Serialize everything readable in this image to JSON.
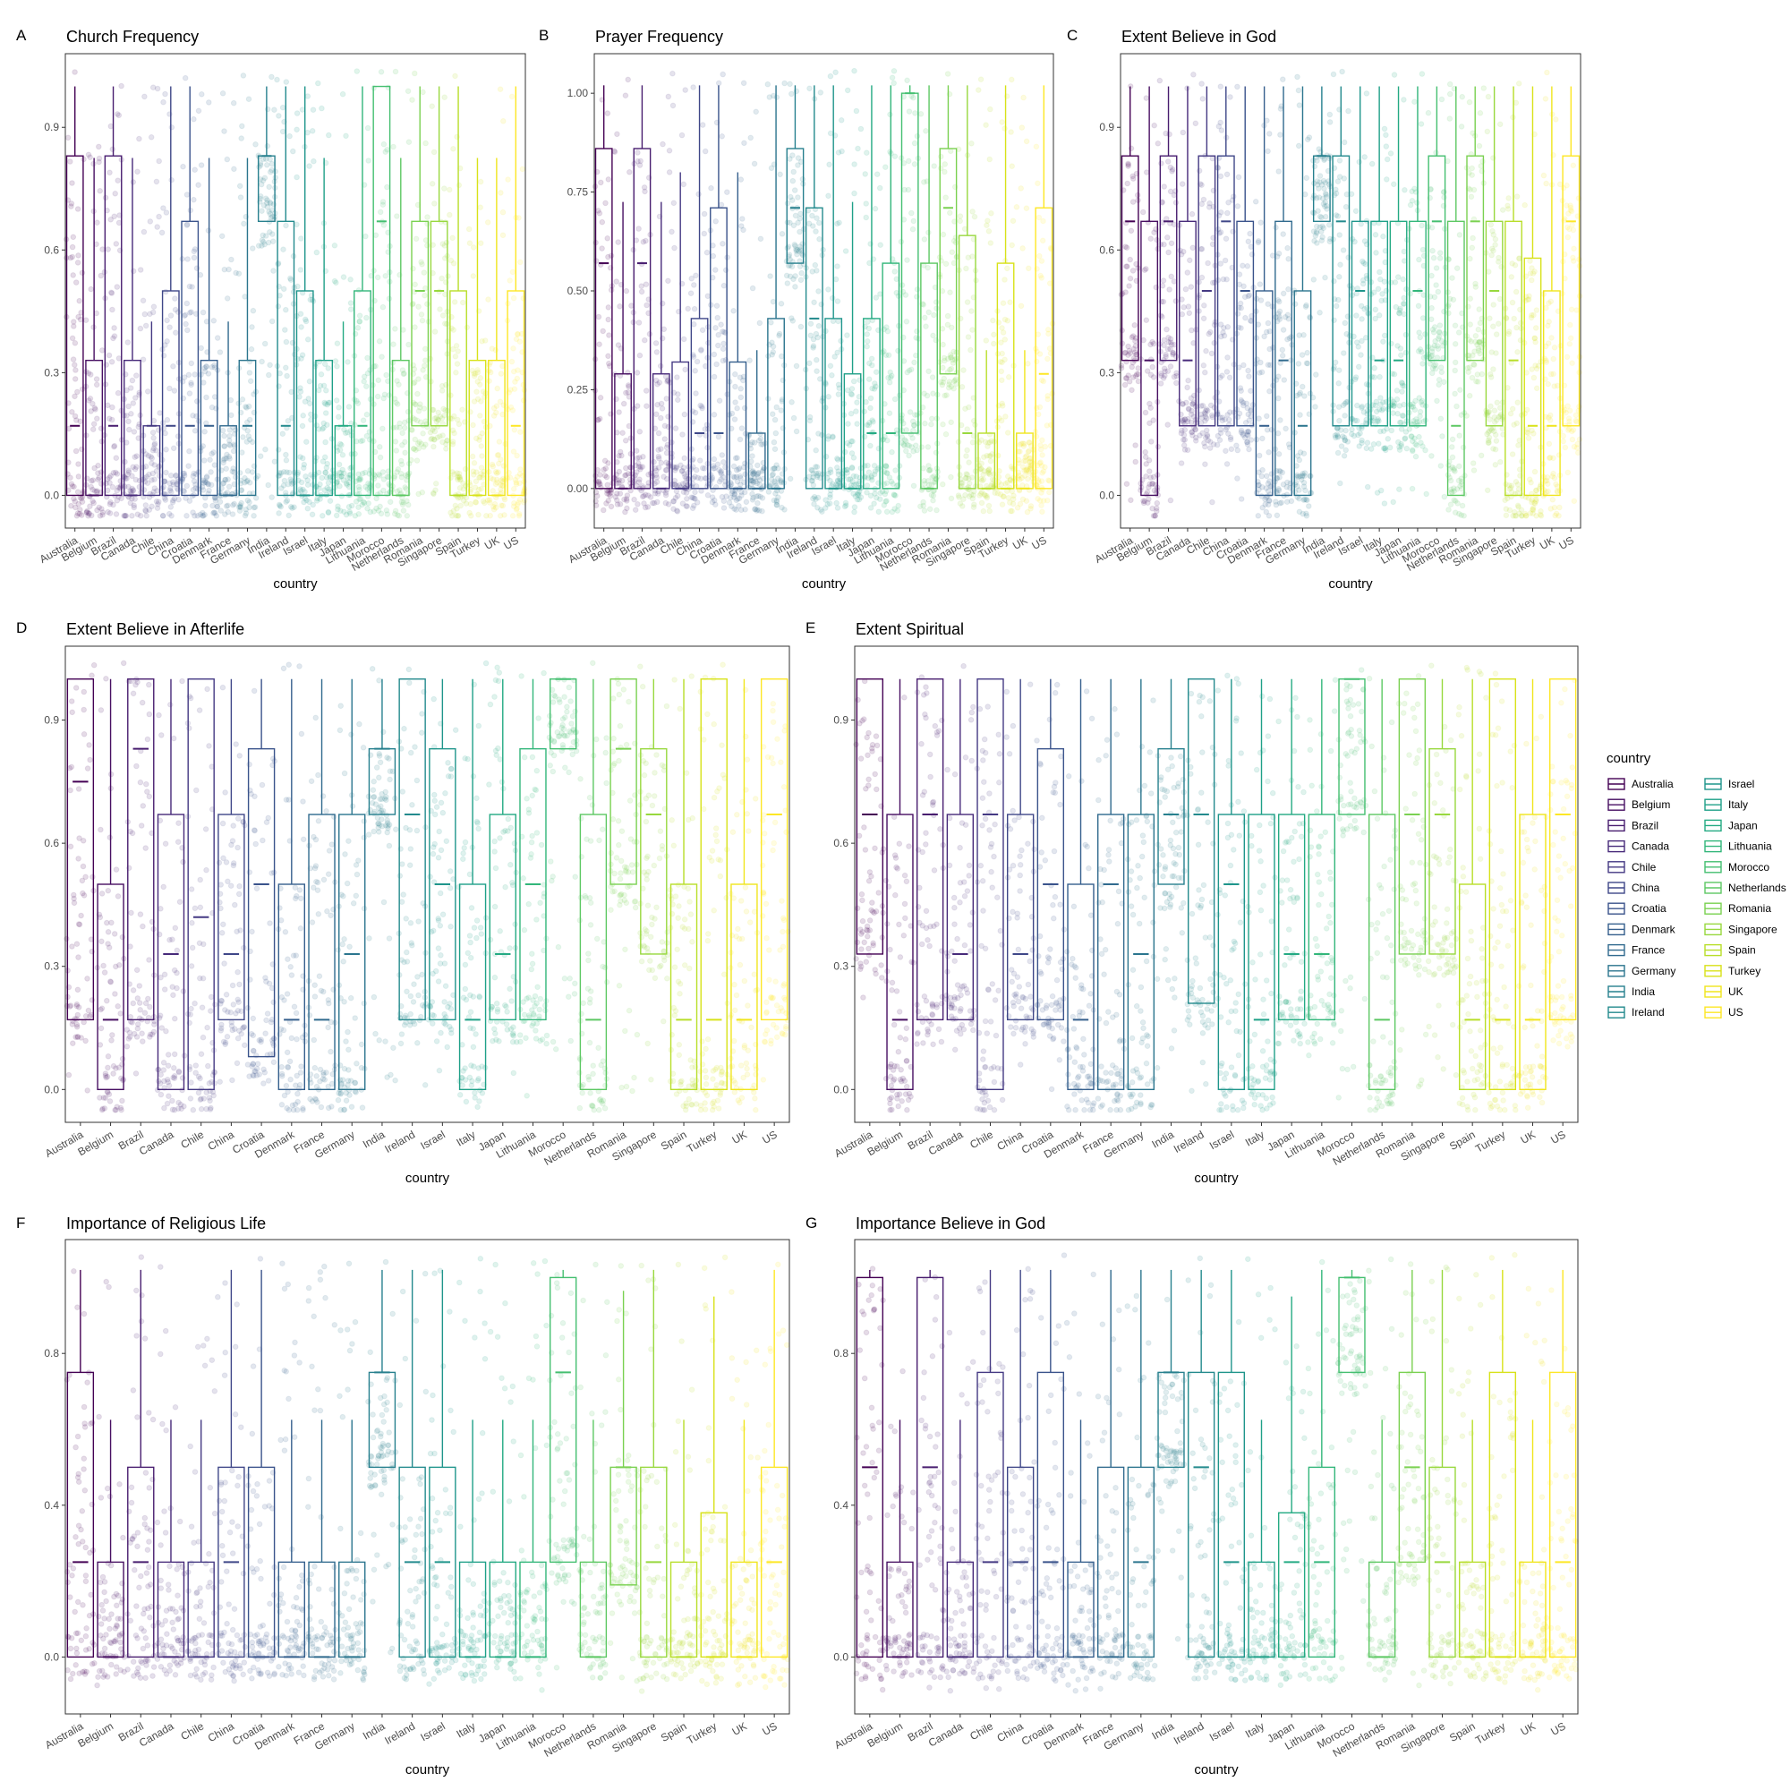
{
  "figure": {
    "countries": [
      "Australia",
      "Belgium",
      "Brazil",
      "Canada",
      "Chile",
      "China",
      "Croatia",
      "Denmark",
      "France",
      "Germany",
      "India",
      "Ireland",
      "Israel",
      "Italy",
      "Japan",
      "Lithuania",
      "Morocco",
      "Netherlands",
      "Romania",
      "Singapore",
      "Spain",
      "Turkey",
      "UK",
      "US"
    ],
    "palette": [
      "#440154",
      "#470F62",
      "#481D6F",
      "#472A7A",
      "#443983",
      "#3F4788",
      "#3A538B",
      "#355F8D",
      "#306A8E",
      "#2B758E",
      "#27808E",
      "#238A8D",
      "#1F958B",
      "#1FA088",
      "#24AA83",
      "#32B67A",
      "#44BF70",
      "#5DC863",
      "#7AD151",
      "#98D83E",
      "#B8DE29",
      "#D8E219",
      "#F0E51D",
      "#FDE725"
    ],
    "xlabel": "country",
    "legend": {
      "title": "country"
    }
  },
  "chart_data": [
    {
      "panel": "A",
      "type": "boxplot",
      "title": "Church Frequency",
      "xlabel": "country",
      "ylim": [
        -0.08,
        1.08
      ],
      "yticks": [
        "0.0",
        "0.3",
        "0.6",
        "0.9"
      ],
      "ytick_values": [
        0,
        0.3,
        0.6,
        0.9
      ],
      "median": [
        0.17,
        0,
        0.17,
        0,
        0.17,
        0.17,
        0.17,
        0.17,
        0,
        0.17,
        0.83,
        0.17,
        0,
        0,
        0.17,
        0.17,
        0.67,
        0,
        0.5,
        0.5,
        0,
        0,
        0,
        0.17
      ],
      "q1": [
        0,
        0,
        0,
        0,
        0,
        0,
        0,
        0,
        0,
        0,
        0.67,
        0,
        0,
        0,
        0,
        0,
        0,
        0,
        0.17,
        0.17,
        0,
        0,
        0,
        0
      ],
      "q3": [
        0.83,
        0.33,
        0.83,
        0.33,
        0.17,
        0.5,
        0.67,
        0.33,
        0.17,
        0.33,
        0.83,
        0.67,
        0.5,
        0.33,
        0.17,
        0.5,
        1,
        0.33,
        0.67,
        0.67,
        0.5,
        0.33,
        0.33,
        0.5
      ]
    },
    {
      "panel": "B",
      "type": "boxplot",
      "title": "Prayer Frequency",
      "xlabel": "country",
      "ylim": [
        -0.1,
        1.1
      ],
      "yticks": [
        "0.00",
        "0.25",
        "0.50",
        "0.75",
        "1.00"
      ],
      "ytick_values": [
        0,
        0.25,
        0.5,
        0.75,
        1
      ],
      "median": [
        0.57,
        0,
        0.57,
        0,
        0,
        0.14,
        0.14,
        0,
        0,
        0,
        0.71,
        0.43,
        0,
        0,
        0.14,
        0.14,
        1,
        0,
        0.71,
        0.14,
        0,
        0,
        0,
        0.29
      ],
      "q1": [
        0,
        0,
        0,
        0,
        0,
        0,
        0,
        0,
        0,
        0,
        0.57,
        0,
        0,
        0,
        0,
        0,
        0.14,
        0,
        0.29,
        0,
        0,
        0,
        0,
        0
      ],
      "q3": [
        0.86,
        0.29,
        0.86,
        0.29,
        0.32,
        0.43,
        0.71,
        0.32,
        0.14,
        0.43,
        0.86,
        0.71,
        0.43,
        0.29,
        0.43,
        0.57,
        1,
        0.57,
        0.86,
        0.64,
        0.14,
        0.57,
        0.14,
        0.71
      ]
    },
    {
      "panel": "C",
      "type": "boxplot",
      "title": "Extent Believe in God",
      "xlabel": "country",
      "ylim": [
        -0.08,
        1.08
      ],
      "yticks": [
        "0.0",
        "0.3",
        "0.6",
        "0.9"
      ],
      "ytick_values": [
        0,
        0.3,
        0.6,
        0.9
      ],
      "median": [
        0.67,
        0.33,
        0.67,
        0.33,
        0.5,
        0.67,
        0.5,
        0.17,
        0.33,
        0.17,
        0.83,
        0.67,
        0.5,
        0.33,
        0.33,
        0.5,
        0.67,
        0.17,
        0.67,
        0.5,
        0.33,
        0.17,
        0.17,
        0.67
      ],
      "q1": [
        0.33,
        0,
        0.33,
        0.17,
        0.17,
        0.17,
        0.17,
        0,
        0,
        0,
        0.67,
        0.17,
        0.17,
        0.17,
        0.17,
        0.17,
        0.33,
        0,
        0.33,
        0.17,
        0,
        0,
        0,
        0.17
      ],
      "q3": [
        0.83,
        0.67,
        0.83,
        0.67,
        0.83,
        0.83,
        0.67,
        0.5,
        0.67,
        0.5,
        0.83,
        0.83,
        0.67,
        0.67,
        0.67,
        0.67,
        0.83,
        0.67,
        0.83,
        0.67,
        0.67,
        0.58,
        0.5,
        0.83
      ]
    },
    {
      "panel": "D",
      "type": "boxplot",
      "title": "Extent Believe in Afterlife",
      "xlabel": "country",
      "ylim": [
        -0.08,
        1.08
      ],
      "yticks": [
        "0.0",
        "0.3",
        "0.6",
        "0.9"
      ],
      "ytick_values": [
        0,
        0.3,
        0.6,
        0.9
      ],
      "median": [
        0.75,
        0.17,
        0.83,
        0.33,
        0.42,
        0.33,
        0.5,
        0.17,
        0.17,
        0.33,
        0.83,
        0.67,
        0.5,
        0.17,
        0.33,
        0.5,
        1,
        0.17,
        0.83,
        0.67,
        0.17,
        0.17,
        0.17,
        0.67
      ],
      "q1": [
        0.17,
        0,
        0.17,
        0,
        0,
        0.17,
        0.08,
        0,
        0,
        0,
        0.67,
        0.17,
        0.17,
        0,
        0.17,
        0.17,
        0.83,
        0,
        0.5,
        0.33,
        0,
        0,
        0,
        0.17
      ],
      "q3": [
        1,
        0.5,
        1,
        0.67,
        1,
        0.67,
        0.83,
        0.5,
        0.67,
        0.67,
        0.83,
        1,
        0.83,
        0.5,
        0.67,
        0.83,
        1,
        0.67,
        1,
        0.83,
        0.5,
        1,
        0.5,
        1
      ]
    },
    {
      "panel": "E",
      "type": "boxplot",
      "title": "Extent Spiritual",
      "xlabel": "country",
      "ylim": [
        -0.08,
        1.08
      ],
      "yticks": [
        "0.0",
        "0.3",
        "0.6",
        "0.9"
      ],
      "ytick_values": [
        0,
        0.3,
        0.6,
        0.9
      ],
      "median": [
        0.67,
        0.17,
        0.67,
        0.33,
        0.67,
        0.33,
        0.5,
        0.17,
        0.5,
        0.33,
        0.67,
        0.67,
        0.5,
        0.17,
        0.33,
        0.33,
        1,
        0.17,
        0.67,
        0.67,
        0.17,
        0.17,
        0.17,
        0.67
      ],
      "q1": [
        0.33,
        0,
        0.17,
        0.17,
        0,
        0.17,
        0.17,
        0,
        0,
        0,
        0.5,
        0.21,
        0,
        0,
        0.17,
        0.17,
        0.67,
        0,
        0.33,
        0.33,
        0,
        0,
        0,
        0.17
      ],
      "q3": [
        1,
        0.67,
        1,
        0.67,
        1,
        0.67,
        0.83,
        0.5,
        0.67,
        0.67,
        0.83,
        1,
        0.67,
        0.67,
        0.67,
        0.67,
        1,
        0.67,
        1,
        0.83,
        0.5,
        1,
        0.67,
        1
      ]
    },
    {
      "panel": "F",
      "type": "boxplot",
      "title": "Importance of Religious Life",
      "xlabel": "country",
      "ylim": [
        -0.15,
        1.1
      ],
      "yticks": [
        "0.0",
        "0.4",
        "0.8"
      ],
      "ytick_values": [
        0,
        0.4,
        0.8
      ],
      "median": [
        0.25,
        0,
        0.25,
        0,
        0,
        0.25,
        0,
        0,
        0,
        0,
        0.75,
        0.25,
        0.25,
        0,
        0,
        0,
        0.75,
        0,
        0.5,
        0.25,
        0,
        0,
        0,
        0.25
      ],
      "q1": [
        0,
        0,
        0,
        0,
        0,
        0,
        0,
        0,
        0,
        0,
        0.5,
        0,
        0,
        0,
        0,
        0,
        0.25,
        0,
        0.19,
        0,
        0,
        0,
        0,
        0
      ],
      "q3": [
        0.75,
        0.25,
        0.5,
        0.25,
        0.25,
        0.5,
        0.5,
        0.25,
        0.25,
        0.25,
        0.75,
        0.5,
        0.5,
        0.25,
        0.25,
        0.25,
        1,
        0.25,
        0.5,
        0.5,
        0.25,
        0.38,
        0.25,
        0.5
      ]
    },
    {
      "panel": "G",
      "type": "boxplot",
      "title": "Importance Believe in God",
      "xlabel": "country",
      "ylim": [
        -0.15,
        1.1
      ],
      "yticks": [
        "0.0",
        "0.4",
        "0.8"
      ],
      "ytick_values": [
        0,
        0.4,
        0.8
      ],
      "median": [
        0.5,
        0,
        0.5,
        0,
        0.25,
        0.25,
        0.25,
        0,
        0,
        0.25,
        0.75,
        0.5,
        0.25,
        0,
        0.25,
        0.25,
        1,
        0,
        0.5,
        0.25,
        0,
        0,
        0,
        0.25
      ],
      "q1": [
        0,
        0,
        0,
        0,
        0,
        0,
        0,
        0,
        0,
        0,
        0.5,
        0,
        0,
        0,
        0,
        0,
        0.75,
        0,
        0.25,
        0,
        0,
        0,
        0,
        0
      ],
      "q3": [
        1,
        0.25,
        1,
        0.25,
        0.75,
        0.5,
        0.75,
        0.25,
        0.5,
        0.5,
        0.75,
        0.75,
        0.75,
        0.25,
        0.38,
        0.5,
        1,
        0.25,
        0.75,
        0.5,
        0.25,
        0.75,
        0.25,
        0.75
      ]
    }
  ]
}
